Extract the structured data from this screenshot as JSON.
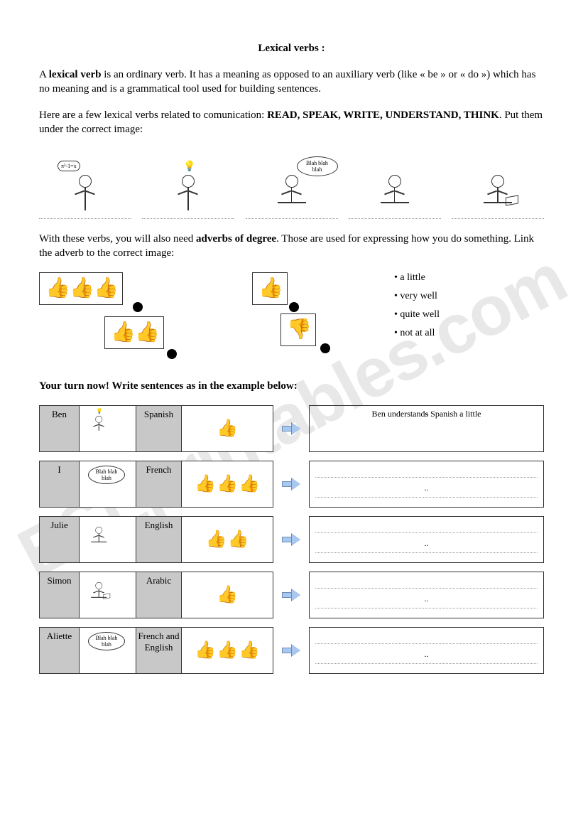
{
  "watermark": "ESLprintables.com",
  "title": "Lexical verbs :",
  "intro": {
    "part1": "A ",
    "bold1": "lexical verb",
    "part2": " is an ordinary verb. It has a meaning as opposed to an auxiliary verb (like « be » or « do ») which has no meaning and is a grammatical tool used for building sentences."
  },
  "instruction1": {
    "part1": "Here are a few lexical verbs related to comunication: ",
    "bold1": "READ, SPEAK, WRITE, UNDERSTAND, THINK",
    "part2": ". Put them under the correct image:"
  },
  "thought_text": "π²-1=x",
  "speech_text": "Blah blah blah",
  "instruction2": {
    "part1": "With these verbs, you will also need ",
    "bold1": "adverbs of degree",
    "part2": ". Those are used for expressing how you do something. Link the adverb to the correct image:"
  },
  "adverbs": [
    "a little",
    "very well",
    "quite well",
    "not at all"
  ],
  "exercise_prompt": "Your turn now! Write sentences as in the example below:",
  "rows": [
    {
      "name": "Ben",
      "verb_hint": "understand",
      "lang": "Spanish",
      "thumbs": 1,
      "answer": "Ben understands Spanish a little"
    },
    {
      "name": "I",
      "verb_hint": "speak",
      "lang": "French",
      "thumbs": 3,
      "answer": ".."
    },
    {
      "name": "Julie",
      "verb_hint": "write",
      "lang": "English",
      "thumbs": 2,
      "answer": ".."
    },
    {
      "name": "Simon",
      "verb_hint": "read",
      "lang": "Arabic",
      "thumbs": 1,
      "answer": ".."
    },
    {
      "name": "Aliette",
      "verb_hint": "speak",
      "lang": "French and English",
      "thumbs": 3,
      "answer": ".."
    }
  ],
  "colors": {
    "thumb": "#f5c96b",
    "cell_gray": "#c8c8c8",
    "arrow_fill": "#a8c8f0",
    "arrow_border": "#6a8cb8",
    "watermark": "#e8e8e8"
  }
}
